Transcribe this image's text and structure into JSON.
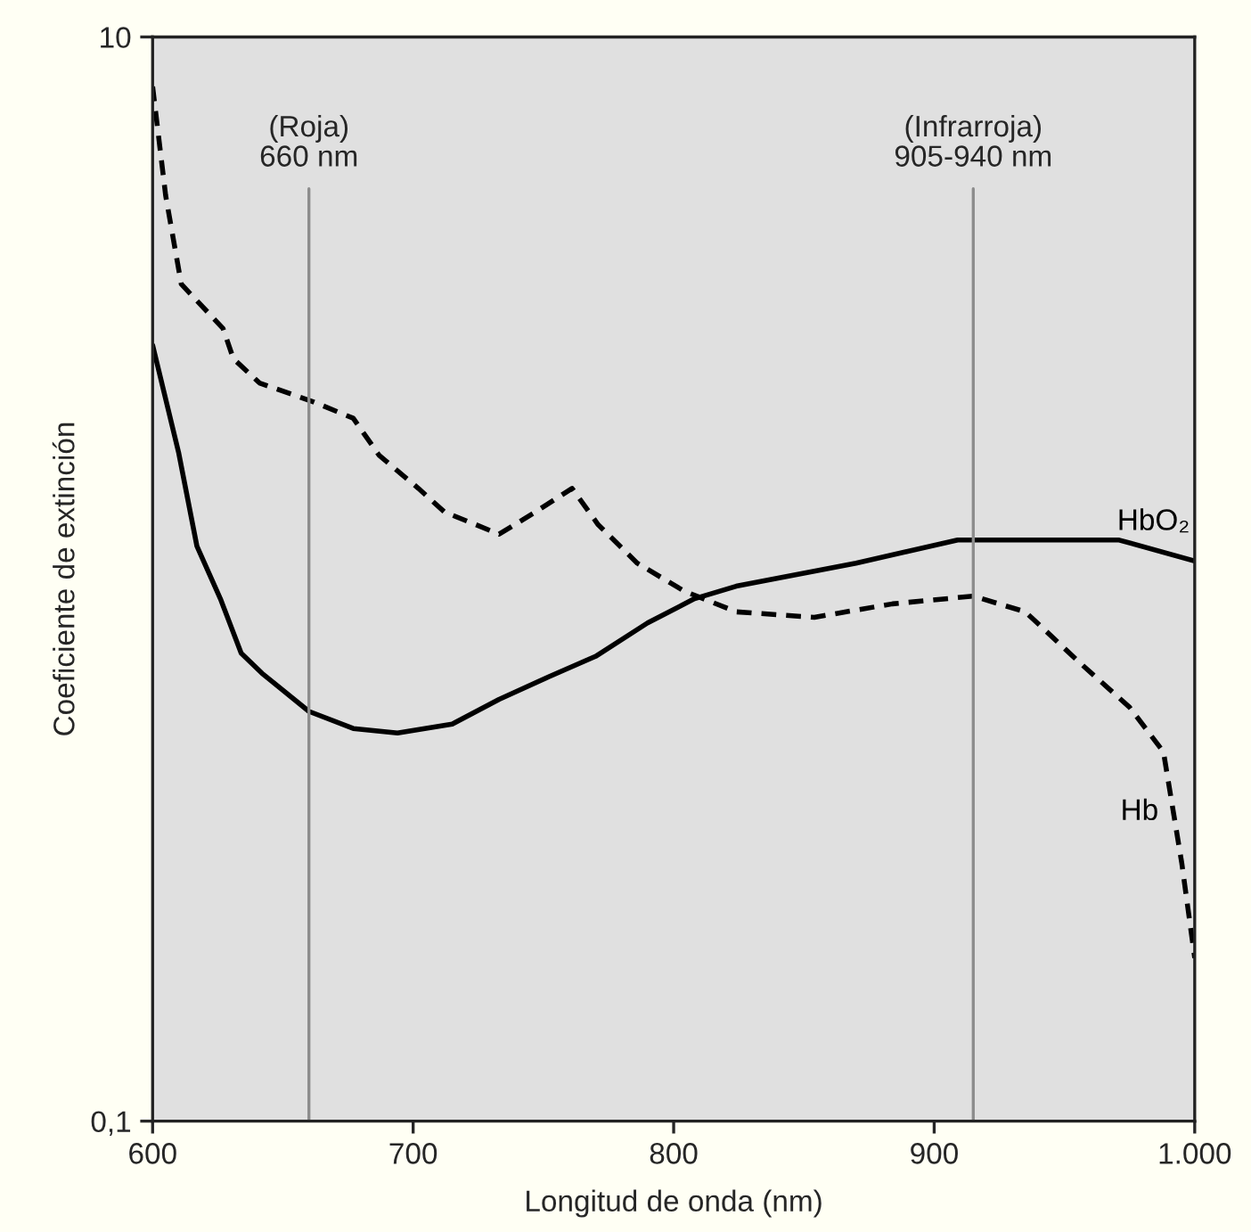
{
  "chart_data": {
    "type": "line",
    "xlabel": "Longitud de onda (nm)",
    "ylabel": "Coeficiente de extinción",
    "log": "y",
    "xlim": [
      600,
      1000
    ],
    "ylim": [
      0.1,
      10
    ],
    "xticks": [
      600,
      700,
      800,
      900,
      {
        "value": 1000,
        "label": "1.000"
      }
    ],
    "yticks": [
      {
        "value": 0.1,
        "label": "0,1"
      },
      10
    ],
    "grid": false,
    "legend": false,
    "series": [
      {
        "name": "HbO₂",
        "color": "#000000",
        "line_style": "solid",
        "x": [
          600,
          610,
          617,
          626,
          634,
          642,
          660,
          677,
          694,
          715,
          733,
          752,
          770,
          790,
          808,
          824,
          870,
          909,
          971,
          1000
        ],
        "values": [
          2.7,
          1.71,
          1.15,
          0.92,
          0.73,
          0.67,
          0.57,
          0.53,
          0.52,
          0.54,
          0.6,
          0.66,
          0.72,
          0.83,
          0.92,
          0.97,
          1.07,
          1.18,
          1.18,
          1.08
        ]
      },
      {
        "name": "Hb",
        "color": "#000000",
        "line_style": "dashed",
        "x": [
          600,
          605,
          611,
          627,
          631,
          641,
          662,
          677,
          687,
          702,
          712,
          733,
          747,
          761,
          771,
          786,
          804,
          824,
          854,
          884,
          915,
          935,
          956,
          975,
          988,
          995,
          1000
        ],
        "values": [
          8.1,
          5.1,
          3.5,
          2.9,
          2.55,
          2.3,
          2.12,
          1.98,
          1.69,
          1.47,
          1.33,
          1.21,
          1.33,
          1.47,
          1.26,
          1.07,
          0.95,
          0.87,
          0.85,
          0.9,
          0.93,
          0.87,
          0.7,
          0.58,
          0.48,
          0.3,
          0.2
        ]
      }
    ],
    "ref_lines": [
      {
        "axis": "x",
        "value": 660,
        "label": "(Roja)\n660 nm",
        "color": "#8c8c8c"
      },
      {
        "axis": "x",
        "value": 915,
        "label": "(Infrarroja)\n905-940 nm",
        "color": "#8c8c8c"
      }
    ]
  }
}
